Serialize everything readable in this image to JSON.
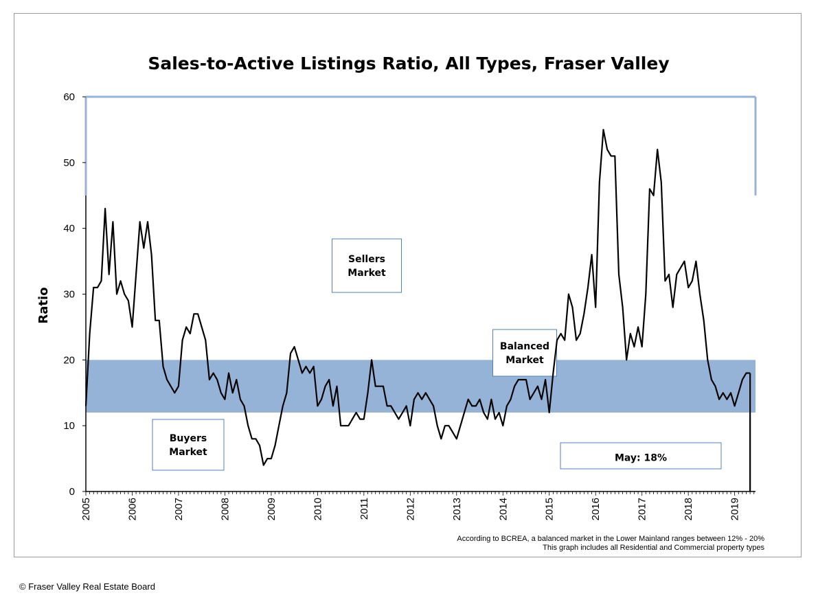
{
  "footer": {
    "copyright": "© Fraser Valley Real Estate Board"
  },
  "chart_data": {
    "type": "line",
    "title": "Sales-to-Active Listings Ratio, All Types, Fraser Valley",
    "ylabel": "Ratio",
    "xlabel": "",
    "ylim": [
      0,
      60
    ],
    "yticks": [
      0,
      10,
      20,
      30,
      40,
      50,
      60
    ],
    "xlim": [
      2005,
      2019.45
    ],
    "xtick_labels": [
      "2005",
      "2006",
      "2007",
      "2008",
      "2009",
      "2010",
      "2011",
      "2012",
      "2013",
      "2014",
      "2015",
      "2016",
      "2017",
      "2018",
      "2019"
    ],
    "balanced_band": [
      12,
      20
    ],
    "annotations": {
      "sellers": [
        "Sellers",
        "Market"
      ],
      "balanced": [
        "Balanced",
        "Market"
      ],
      "buyers": [
        "Buyers",
        "Market"
      ],
      "latest": "May: 18%",
      "note_1": "According to BCREA, a balanced market in the Lower Mainland ranges between 12% - 20%",
      "note_2": "This graph includes all Residential and Commercial property types"
    },
    "colors": {
      "line": "#000000",
      "band": "#95b3d7",
      "axis": "#95b3d7",
      "box_border": "#4f81bd"
    },
    "series": [
      {
        "values": [
          13,
          24,
          31,
          31,
          32,
          43,
          33,
          41,
          30,
          32,
          30,
          29,
          25,
          33,
          41,
          37,
          41,
          36,
          26,
          26,
          19,
          17,
          16,
          15,
          16,
          23,
          25,
          24,
          27,
          27,
          25,
          23,
          17,
          18,
          17,
          15,
          14,
          18,
          15,
          17,
          14,
          13,
          10,
          8,
          8,
          7,
          4,
          5,
          5,
          7,
          10,
          13,
          15,
          21,
          22,
          20,
          18,
          19,
          18,
          19,
          13,
          14,
          16,
          17,
          13,
          16,
          10,
          10,
          10,
          11,
          12,
          11,
          11,
          15,
          20,
          16,
          16,
          16,
          13,
          13,
          12,
          11,
          12,
          13,
          10,
          14,
          15,
          14,
          15,
          14,
          13,
          10,
          8,
          10,
          10,
          9,
          8,
          10,
          12,
          14,
          13,
          13,
          14,
          12,
          11,
          14,
          11,
          12,
          10,
          13,
          14,
          16,
          17,
          17,
          17,
          14,
          15,
          16,
          14,
          17,
          12,
          18,
          23,
          24,
          23,
          30,
          28,
          23,
          24,
          27,
          31,
          36,
          28,
          47,
          55,
          52,
          51,
          51,
          33,
          28,
          20,
          24,
          22,
          25,
          22,
          30,
          46,
          45,
          52,
          47,
          32,
          33,
          28,
          33,
          34,
          35,
          31,
          32,
          35,
          30,
          26,
          20,
          17,
          16,
          14,
          15,
          14,
          15,
          13,
          15,
          17,
          18,
          18
        ]
      }
    ]
  }
}
